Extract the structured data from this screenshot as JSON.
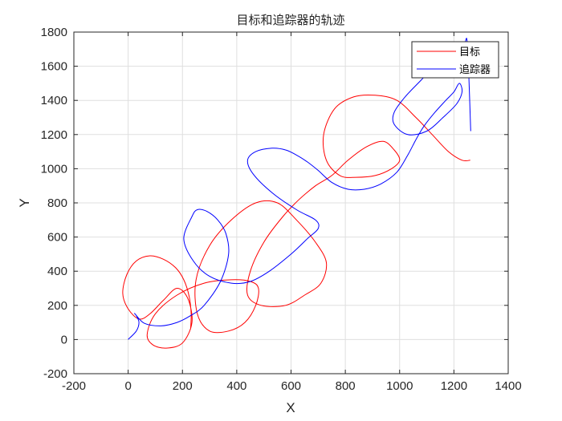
{
  "chart_data": {
    "type": "line",
    "title": "目标和追踪器的轨迹",
    "xlabel": "X",
    "ylabel": "Y",
    "xlim": [
      -200,
      1400
    ],
    "ylim": [
      -200,
      1800
    ],
    "xticks": [
      -200,
      0,
      200,
      400,
      600,
      800,
      1000,
      1200,
      1400
    ],
    "yticks": [
      -200,
      0,
      200,
      400,
      600,
      800,
      1000,
      1200,
      1400,
      1600,
      1800
    ],
    "grid": true,
    "legend_position": "top-right",
    "series": [
      {
        "name": "目标",
        "color": "#ff0000",
        "x": [
          230,
          232,
          225,
          205,
          175,
          130,
          80,
          30,
          -5,
          -20,
          0,
          40,
          80,
          130,
          180,
          220,
          235,
          200,
          140,
          90,
          70,
          100,
          180,
          280,
          380,
          450,
          480,
          470,
          430,
          370,
          300,
          255,
          250,
          300,
          380,
          470,
          550,
          620,
          690,
          730,
          710,
          650,
          580,
          490,
          440,
          450,
          500,
          570,
          630,
          690,
          750,
          810,
          880,
          940,
          980,
          1000,
          970,
          910,
          840,
          780,
          730,
          720,
          760,
          830,
          910,
          990,
          1060,
          1120,
          1180,
          1230,
          1260
        ],
        "y": [
          60,
          150,
          250,
          350,
          420,
          470,
          490,
          460,
          380,
          270,
          180,
          120,
          150,
          230,
          300,
          240,
          100,
          -20,
          -50,
          -30,
          30,
          150,
          260,
          330,
          350,
          340,
          300,
          200,
          100,
          50,
          50,
          150,
          350,
          550,
          700,
          800,
          800,
          700,
          570,
          450,
          330,
          260,
          200,
          200,
          260,
          400,
          570,
          720,
          820,
          900,
          960,
          1050,
          1130,
          1160,
          1110,
          1050,
          1000,
          960,
          950,
          960,
          1050,
          1200,
          1350,
          1420,
          1430,
          1400,
          1300,
          1200,
          1100,
          1050,
          1050
        ]
      },
      {
        "name": "追踪器",
        "color": "#0000ff",
        "x": [
          0,
          30,
          40,
          30,
          25,
          60,
          120,
          180,
          230,
          280,
          340,
          370,
          360,
          330,
          290,
          255,
          235,
          205,
          240,
          300,
          380,
          450,
          520,
          600,
          660,
          700,
          690,
          620,
          530,
          460,
          440,
          470,
          530,
          580,
          620,
          660,
          700,
          750,
          810,
          870,
          930,
          990,
          1030,
          1060,
          1090,
          1130,
          1170,
          1200,
          1220,
          1230,
          1210,
          1160,
          1100,
          1030,
          980,
          980,
          1020,
          1080,
          1140,
          1190,
          1220,
          1240,
          1250,
          1262
        ],
        "y": [
          0,
          50,
          100,
          140,
          150,
          95,
          80,
          100,
          140,
          200,
          340,
          500,
          620,
          700,
          750,
          760,
          720,
          590,
          460,
          370,
          330,
          340,
          400,
          500,
          590,
          650,
          700,
          760,
          860,
          970,
          1050,
          1100,
          1120,
          1110,
          1080,
          1040,
          990,
          920,
          880,
          880,
          910,
          980,
          1080,
          1170,
          1250,
          1330,
          1400,
          1450,
          1500,
          1450,
          1380,
          1300,
          1220,
          1200,
          1260,
          1330,
          1420,
          1520,
          1620,
          1690,
          1730,
          1740,
          1720,
          1220
        ]
      }
    ]
  }
}
